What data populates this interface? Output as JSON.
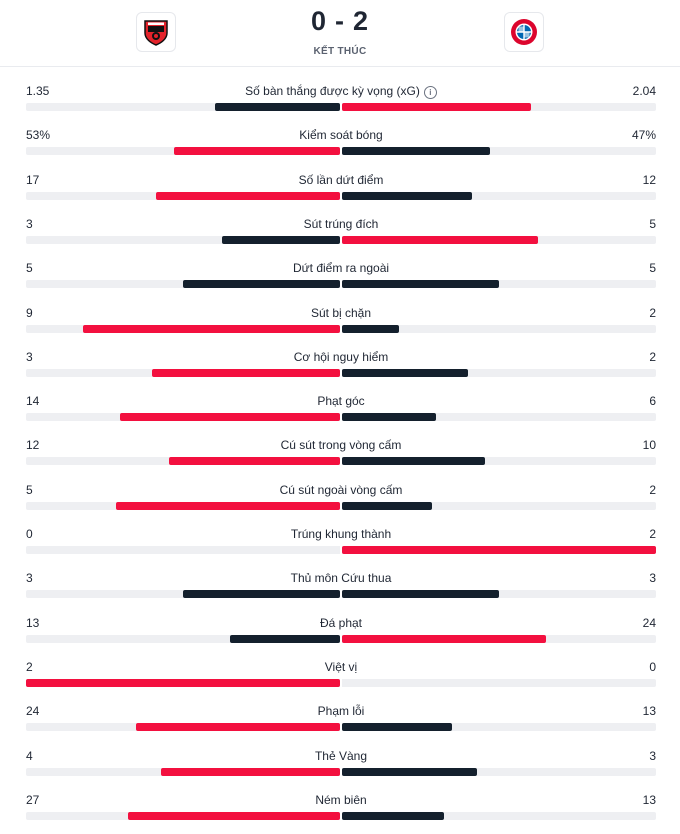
{
  "match": {
    "home_score": "0",
    "away_score": "2",
    "separator": "-",
    "status": "KẾT THÚC",
    "home_badge_icon": "leverkusen-badge-icon",
    "away_badge_icon": "bayern-badge-icon"
  },
  "colors": {
    "red": "#f3103f",
    "navy": "#14202d",
    "track": "#eeeff2"
  },
  "stats": [
    {
      "label": "Số bàn thắng được kỳ vọng (xG)",
      "home": "1.35",
      "away": "2.04",
      "home_frac": 0.398,
      "away_frac": 0.602,
      "info": "i",
      "home_color": "navy",
      "away_color": "red"
    },
    {
      "label": "Kiểm soát bóng",
      "home": "53%",
      "away": "47%",
      "home_frac": 0.53,
      "away_frac": 0.47,
      "home_color": "red",
      "away_color": "navy"
    },
    {
      "label": "Số lần dứt điểm",
      "home": "17",
      "away": "12",
      "home_frac": 0.586,
      "away_frac": 0.414,
      "home_color": "red",
      "away_color": "navy"
    },
    {
      "label": "Sút trúng đích",
      "home": "3",
      "away": "5",
      "home_frac": 0.375,
      "away_frac": 0.625,
      "home_color": "navy",
      "away_color": "red"
    },
    {
      "label": "Dứt điểm ra ngoài",
      "home": "5",
      "away": "5",
      "home_frac": 0.5,
      "away_frac": 0.5,
      "home_color": "navy",
      "away_color": "navy"
    },
    {
      "label": "Sút bị chặn",
      "home": "9",
      "away": "2",
      "home_frac": 0.818,
      "away_frac": 0.182,
      "home_color": "red",
      "away_color": "navy"
    },
    {
      "label": "Cơ hội nguy hiểm",
      "home": "3",
      "away": "2",
      "home_frac": 0.6,
      "away_frac": 0.4,
      "home_color": "red",
      "away_color": "navy"
    },
    {
      "label": "Phạt góc",
      "home": "14",
      "away": "6",
      "home_frac": 0.7,
      "away_frac": 0.3,
      "home_color": "red",
      "away_color": "navy"
    },
    {
      "label": "Cú sút trong vòng cấm",
      "home": "12",
      "away": "10",
      "home_frac": 0.545,
      "away_frac": 0.455,
      "home_color": "red",
      "away_color": "navy"
    },
    {
      "label": "Cú sút ngoài vòng cấm",
      "home": "5",
      "away": "2",
      "home_frac": 0.714,
      "away_frac": 0.286,
      "home_color": "red",
      "away_color": "navy"
    },
    {
      "label": "Trúng khung thành",
      "home": "0",
      "away": "2",
      "home_frac": 0.0,
      "away_frac": 1.0,
      "home_color": "navy",
      "away_color": "red"
    },
    {
      "label": "Thủ môn Cứu thua",
      "home": "3",
      "away": "3",
      "home_frac": 0.5,
      "away_frac": 0.5,
      "home_color": "navy",
      "away_color": "navy"
    },
    {
      "label": "Đá phạt",
      "home": "13",
      "away": "24",
      "home_frac": 0.351,
      "away_frac": 0.649,
      "home_color": "navy",
      "away_color": "red"
    },
    {
      "label": "Việt vị",
      "home": "2",
      "away": "0",
      "home_frac": 1.0,
      "away_frac": 0.0,
      "home_color": "red",
      "away_color": "navy"
    },
    {
      "label": "Phạm lỗi",
      "home": "24",
      "away": "13",
      "home_frac": 0.649,
      "away_frac": 0.351,
      "home_color": "red",
      "away_color": "navy"
    },
    {
      "label": "Thẻ Vàng",
      "home": "4",
      "away": "3",
      "home_frac": 0.571,
      "away_frac": 0.429,
      "home_color": "red",
      "away_color": "navy"
    },
    {
      "label": "Ném biên",
      "home": "27",
      "away": "13",
      "home_frac": 0.675,
      "away_frac": 0.325,
      "home_color": "red",
      "away_color": "navy"
    }
  ]
}
